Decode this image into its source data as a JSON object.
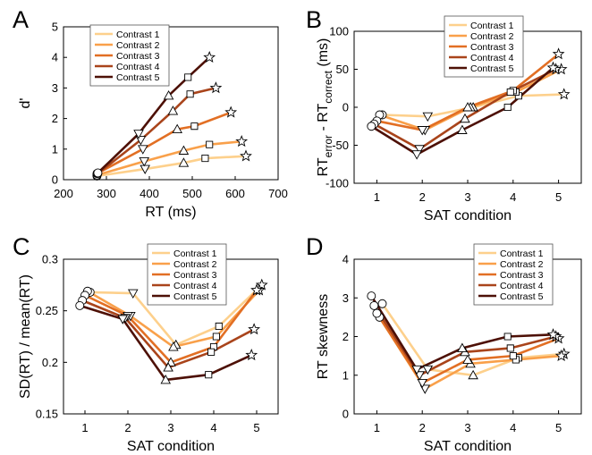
{
  "chart_data": [
    {
      "type": "line",
      "panel_label": "A",
      "xlabel": "RT (ms)",
      "ylabel": "d'",
      "xlim": [
        200,
        700
      ],
      "xticks": [
        200,
        300,
        400,
        500,
        600,
        700
      ],
      "ylim": [
        0,
        5
      ],
      "yticks": [
        0,
        1,
        2,
        3,
        4,
        5
      ],
      "legend": "upper left",
      "markers": [
        "circle",
        "triangle-down",
        "triangle-up",
        "square",
        "star"
      ],
      "series": [
        {
          "name": "Contrast 1",
          "color": "#fdd08c",
          "x": [
            278,
            390,
            480,
            530,
            625
          ],
          "values": [
            0.12,
            0.35,
            0.55,
            0.7,
            0.77
          ]
        },
        {
          "name": "Contrast 2",
          "color": "#f9a04a",
          "x": [
            278,
            388,
            480,
            540,
            615
          ],
          "values": [
            0.15,
            0.6,
            0.95,
            1.15,
            1.25
          ]
        },
        {
          "name": "Contrast 3",
          "color": "#e26f24",
          "x": [
            278,
            385,
            465,
            505,
            590
          ],
          "values": [
            0.2,
            1.0,
            1.65,
            1.75,
            2.2
          ]
        },
        {
          "name": "Contrast 4",
          "color": "#a9441b",
          "x": [
            280,
            380,
            455,
            495,
            555
          ],
          "values": [
            0.2,
            1.3,
            2.25,
            2.8,
            3.0
          ]
        },
        {
          "name": "Contrast 5",
          "color": "#4d1006",
          "x": [
            280,
            375,
            445,
            490,
            540
          ],
          "values": [
            0.22,
            1.5,
            2.75,
            3.35,
            4.0
          ]
        }
      ]
    },
    {
      "type": "line",
      "panel_label": "B",
      "xlabel": "SAT condition",
      "ylabel_parts": [
        "RT",
        "error",
        " - RT",
        "correct",
        " (ms)"
      ],
      "x": [
        1,
        2,
        3,
        4,
        5
      ],
      "xlim": [
        0.5,
        5.5
      ],
      "xticks": [
        1,
        2,
        3,
        4,
        5
      ],
      "ylim": [
        -100,
        100
      ],
      "yticks": [
        -100,
        -50,
        0,
        50,
        100
      ],
      "legend": "upper center",
      "markers": [
        "circle",
        "triangle-down",
        "triangle-up",
        "square",
        "star"
      ],
      "series": [
        {
          "name": "Contrast 1",
          "color": "#fdd08c",
          "values": [
            -10,
            -12,
            0,
            15,
            17
          ]
        },
        {
          "name": "Contrast 2",
          "color": "#f9a04a",
          "values": [
            -10,
            -30,
            0,
            20,
            50
          ]
        },
        {
          "name": "Contrast 3",
          "color": "#e26f24",
          "values": [
            -18,
            -30,
            0,
            22,
            70
          ]
        },
        {
          "name": "Contrast 4",
          "color": "#a9441b",
          "values": [
            -22,
            -55,
            -15,
            20,
            50
          ]
        },
        {
          "name": "Contrast 5",
          "color": "#4d1006",
          "values": [
            -25,
            -62,
            -30,
            0,
            52
          ]
        }
      ]
    },
    {
      "type": "line",
      "panel_label": "C",
      "xlabel": "SAT condition",
      "ylabel": "SD(RT) / mean(RT)",
      "x": [
        1,
        2,
        3,
        4,
        5
      ],
      "xlim": [
        0.5,
        5.5
      ],
      "xticks": [
        1,
        2,
        3,
        4,
        5
      ],
      "ylim": [
        0.15,
        0.3
      ],
      "yticks": [
        0.15,
        0.2,
        0.25,
        0.3
      ],
      "legend": "upper center",
      "markers": [
        "circle",
        "triangle-down",
        "triangle-up",
        "square",
        "star"
      ],
      "series": [
        {
          "name": "Contrast 1",
          "color": "#fdd08c",
          "values": [
            0.268,
            0.267,
            0.217,
            0.235,
            0.275
          ]
        },
        {
          "name": "Contrast 2",
          "color": "#f9a04a",
          "values": [
            0.269,
            0.245,
            0.215,
            0.225,
            0.27
          ]
        },
        {
          "name": "Contrast 3",
          "color": "#e26f24",
          "values": [
            0.265,
            0.245,
            0.2,
            0.215,
            0.27
          ]
        },
        {
          "name": "Contrast 4",
          "color": "#a9441b",
          "values": [
            0.26,
            0.243,
            0.195,
            0.21,
            0.232
          ]
        },
        {
          "name": "Contrast 5",
          "color": "#4d1006",
          "values": [
            0.255,
            0.242,
            0.183,
            0.188,
            0.207
          ]
        }
      ]
    },
    {
      "type": "line",
      "panel_label": "D",
      "xlabel": "SAT condition",
      "ylabel": "RT skewness",
      "x": [
        1,
        2,
        3,
        4,
        5
      ],
      "xlim": [
        0.5,
        5.5
      ],
      "xticks": [
        1,
        2,
        3,
        4,
        5
      ],
      "ylim": [
        0,
        4
      ],
      "yticks": [
        0,
        1,
        2,
        3,
        4
      ],
      "legend": "upper right",
      "markers": [
        "circle",
        "triangle-down",
        "triangle-up",
        "square",
        "star"
      ],
      "series": [
        {
          "name": "Contrast 1",
          "color": "#fdd08c",
          "values": [
            2.85,
            1.15,
            1.0,
            1.45,
            1.55
          ]
        },
        {
          "name": "Contrast 2",
          "color": "#f9a04a",
          "values": [
            2.5,
            0.65,
            1.3,
            1.4,
            1.5
          ]
        },
        {
          "name": "Contrast 3",
          "color": "#e26f24",
          "values": [
            2.6,
            0.8,
            1.4,
            1.5,
            1.95
          ]
        },
        {
          "name": "Contrast 4",
          "color": "#a9441b",
          "values": [
            2.8,
            1.0,
            1.6,
            1.7,
            2.0
          ]
        },
        {
          "name": "Contrast 5",
          "color": "#4d1006",
          "values": [
            3.05,
            1.15,
            1.7,
            2.0,
            2.05
          ]
        }
      ]
    }
  ]
}
